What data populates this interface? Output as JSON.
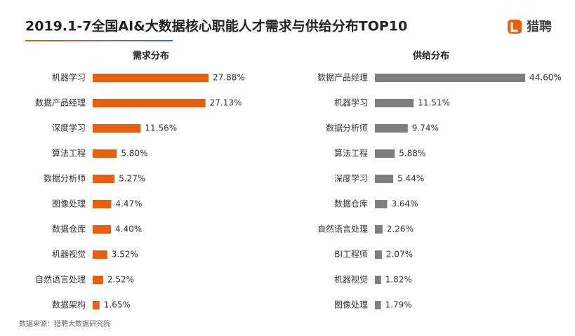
{
  "title": "2019.1-7全国AI&大数据核心职能人才需求与供给分布TOP10",
  "logo": "猎聘",
  "source": "数据来源：猎聘大数据研究院",
  "chart_data": [
    {
      "type": "bar",
      "orientation": "horizontal",
      "title": "需求分布",
      "color": "#e8600d",
      "categories": [
        "机器学习",
        "数据产品经理",
        "深度学习",
        "算法工程",
        "数据分析师",
        "图像处理",
        "数据仓库",
        "机器视觉",
        "自然语言处理",
        "数据架构"
      ],
      "values": [
        27.88,
        27.13,
        11.56,
        5.8,
        5.27,
        4.47,
        4.4,
        3.52,
        2.52,
        1.65
      ],
      "value_labels": [
        "27.88%",
        "27.13%",
        "11.56%",
        "5.80%",
        "5.27%",
        "4.47%",
        "4.40%",
        "3.52%",
        "2.52%",
        "1.65%"
      ]
    },
    {
      "type": "bar",
      "orientation": "horizontal",
      "title": "供给分布",
      "color": "#7f7f7f",
      "categories": [
        "数据产品经理",
        "机器学习",
        "数据分析师",
        "算法工程",
        "深度学习",
        "数据仓库",
        "自然语言处理",
        "BI工程师",
        "机器视觉",
        "图像处理"
      ],
      "values": [
        44.6,
        11.51,
        9.74,
        5.88,
        5.44,
        3.64,
        2.26,
        2.07,
        1.82,
        1.79
      ],
      "value_labels": [
        "44.60%",
        "11.51%",
        "9.74%",
        "5.88%",
        "5.44%",
        "3.64%",
        "2.26%",
        "2.07%",
        "1.82%",
        "1.79%"
      ]
    }
  ]
}
